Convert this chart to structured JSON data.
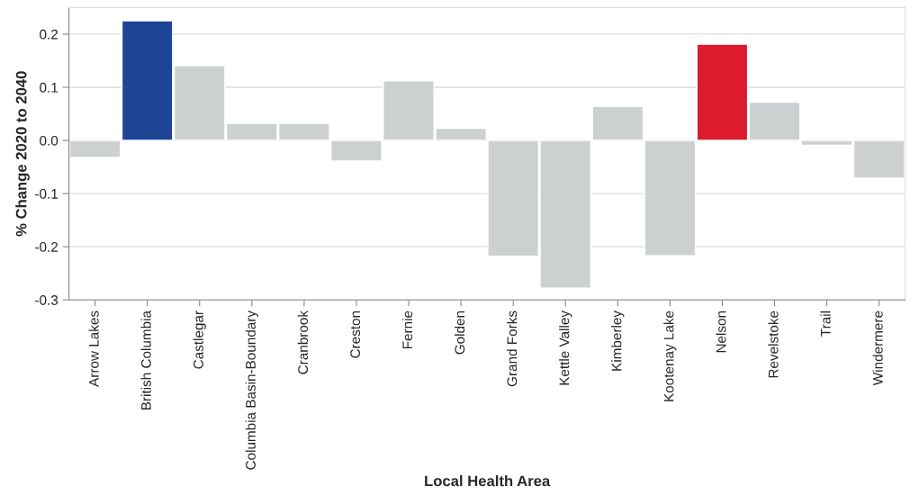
{
  "chart_data": {
    "type": "bar",
    "xlabel": "Local Health Area",
    "ylabel": "% Change 2020 to 2040",
    "categories": [
      "Arrow Lakes",
      "British Columbia",
      "Castlegar",
      "Columbia Basin-Boundary",
      "Cranbrook",
      "Creston",
      "Fernie",
      "Golden",
      "Grand Forks",
      "Kettle Valley",
      "Kimberley",
      "Kootenay Lake",
      "Nelson",
      "Revelstoke",
      "Trail",
      "Windermere"
    ],
    "values": [
      -0.032,
      0.225,
      0.141,
      0.032,
      0.032,
      -0.039,
      0.112,
      0.023,
      -0.218,
      -0.278,
      0.064,
      -0.217,
      0.181,
      0.072,
      -0.009,
      -0.071
    ],
    "colors": [
      "#cdd0d1",
      "#1e4496",
      "#cdd0d1",
      "#cdd0d1",
      "#cdd0d1",
      "#cdd0d1",
      "#cdd0d1",
      "#cdd0d1",
      "#cdd0d1",
      "#cdd0d1",
      "#cdd0d1",
      "#cdd0d1",
      "#dc1b2c",
      "#cdd0d1",
      "#cdd0d1",
      "#cdd0d1"
    ],
    "ylim": [
      -0.3,
      0.25
    ],
    "yticks": [
      {
        "value": -0.3,
        "label": "-0.3"
      },
      {
        "value": -0.2,
        "label": "-0.2"
      },
      {
        "value": -0.1,
        "label": "-0.1"
      },
      {
        "value": 0.0,
        "label": "0.0"
      },
      {
        "value": 0.1,
        "label": "0.1"
      },
      {
        "value": 0.2,
        "label": "0.2"
      }
    ],
    "grid": "y"
  }
}
